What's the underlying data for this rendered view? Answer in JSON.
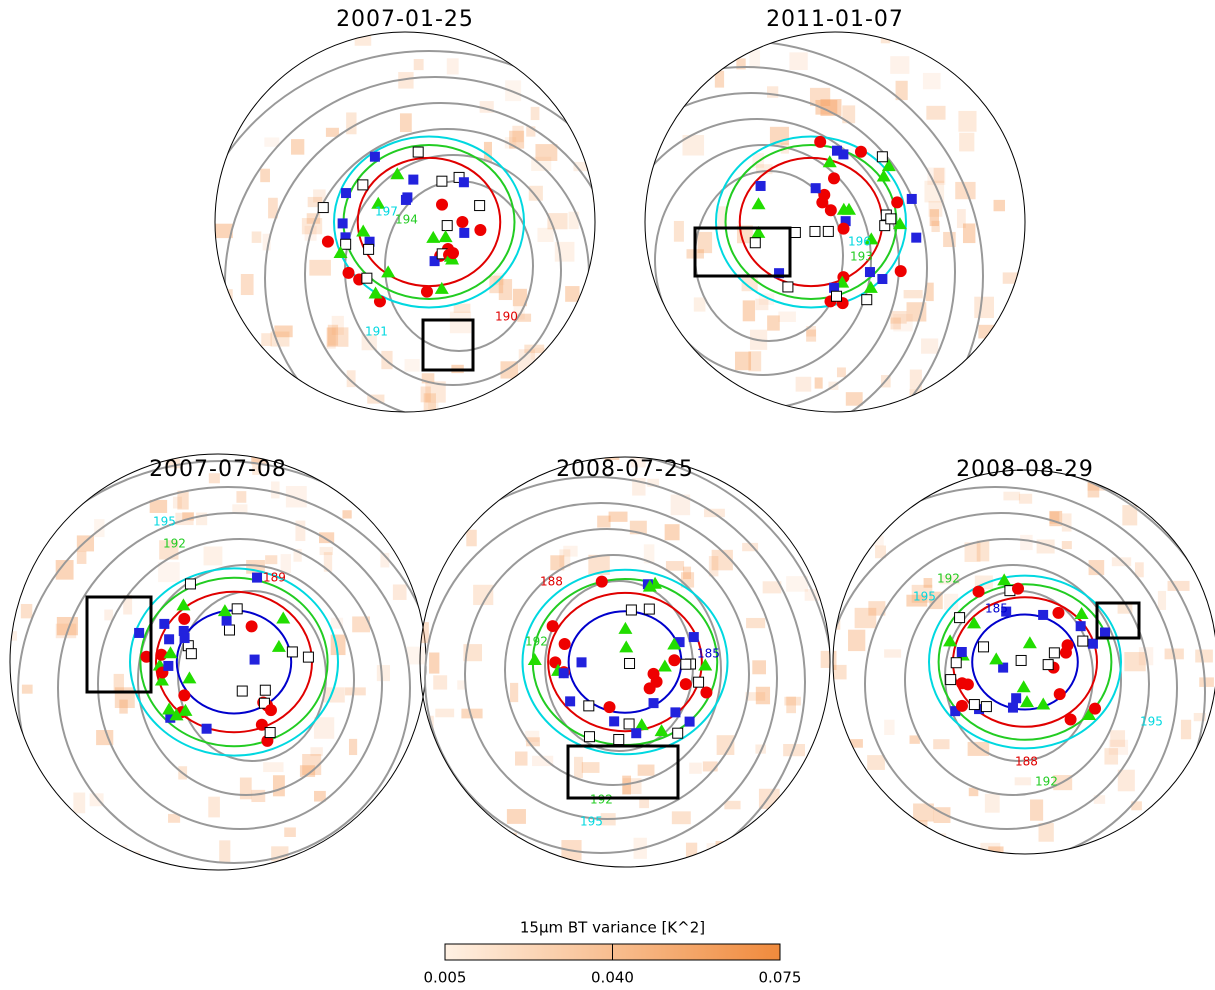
{
  "panels": [
    {
      "title": "2007-01-25",
      "contour_labels": [
        {
          "text": "197",
          "color": "#00d8e0"
        },
        {
          "text": "194",
          "color": "#22cc22"
        },
        {
          "text": "190",
          "color": "#e00000"
        },
        {
          "text": "191",
          "color": "#00d8e0"
        }
      ]
    },
    {
      "title": "2011-01-07",
      "contour_labels": [
        {
          "text": "196",
          "color": "#00d8e0"
        },
        {
          "text": "193",
          "color": "#22cc22"
        }
      ]
    },
    {
      "title": "2007-07-08",
      "contour_labels": [
        {
          "text": "195",
          "color": "#00d8e0"
        },
        {
          "text": "192",
          "color": "#22cc22"
        },
        {
          "text": "189",
          "color": "#e00000"
        }
      ]
    },
    {
      "title": "2008-07-25",
      "contour_labels": [
        {
          "text": "188",
          "color": "#e00000"
        },
        {
          "text": "192",
          "color": "#22cc22"
        },
        {
          "text": "195",
          "color": "#00d8e0"
        },
        {
          "text": "192",
          "color": "#22cc22"
        },
        {
          "text": "185",
          "color": "#0000cc"
        }
      ]
    },
    {
      "title": "2008-08-29",
      "contour_labels": [
        {
          "text": "195",
          "color": "#00d8e0"
        },
        {
          "text": "192",
          "color": "#22cc22"
        },
        {
          "text": "185",
          "color": "#0000cc"
        },
        {
          "text": "188",
          "color": "#e00000"
        },
        {
          "text": "192",
          "color": "#22cc22"
        },
        {
          "text": "195",
          "color": "#00d8e0"
        }
      ]
    }
  ],
  "colorbar": {
    "label": "15μm BT variance [K^2]",
    "lim": [
      0.005,
      0.075
    ],
    "ticks": [
      {
        "value": 0.005,
        "label": "0.005"
      },
      {
        "value": 0.04,
        "label": "0.040"
      },
      {
        "value": 0.075,
        "label": "0.075"
      }
    ]
  }
}
